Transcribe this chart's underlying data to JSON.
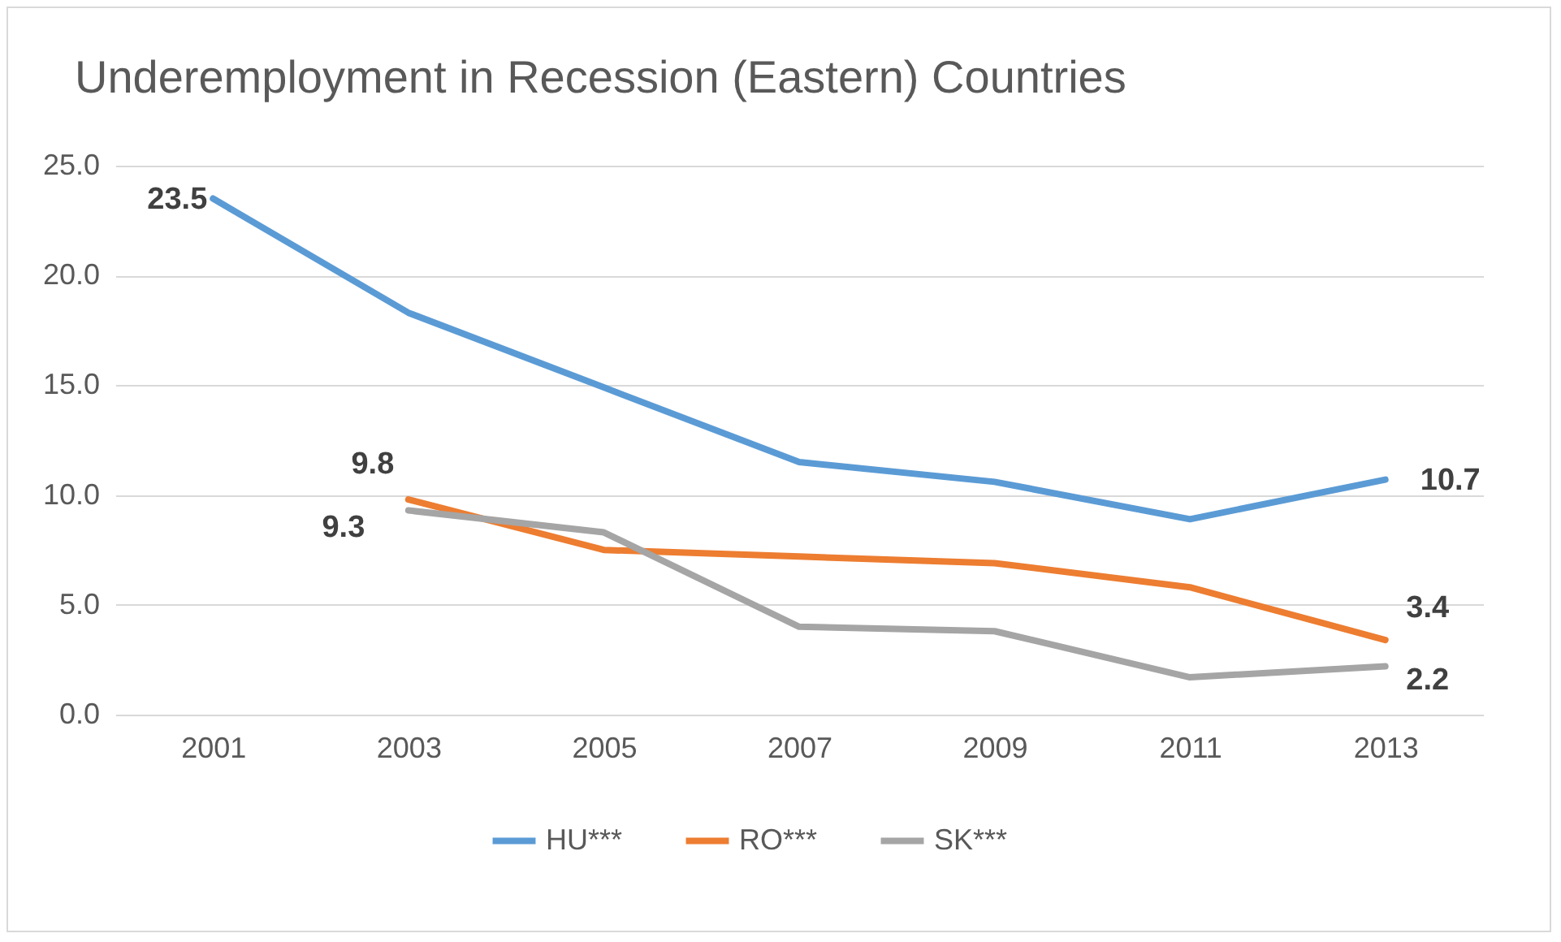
{
  "chart_data": {
    "type": "line",
    "title": "Underemployment in Recession (Eastern) Countries",
    "categories": [
      "2001",
      "2003",
      "2005",
      "2007",
      "2009",
      "2011",
      "2013"
    ],
    "series": [
      {
        "name": "HU***",
        "color": "#5b9bd5",
        "values": [
          23.5,
          18.3,
          14.9,
          11.5,
          10.6,
          8.9,
          10.7
        ],
        "value_labels": [
          "23.5",
          null,
          null,
          null,
          null,
          null,
          "10.7"
        ]
      },
      {
        "name": "RO***",
        "color": "#ed7d31",
        "values": [
          null,
          9.8,
          7.5,
          7.2,
          6.9,
          5.8,
          3.4
        ],
        "value_labels": [
          null,
          "9.8",
          null,
          null,
          null,
          null,
          "3.4"
        ]
      },
      {
        "name": "SK***",
        "color": "#a5a5a5",
        "values": [
          null,
          9.3,
          8.3,
          4.0,
          3.8,
          1.7,
          2.2
        ],
        "value_labels": [
          null,
          "9.3",
          null,
          null,
          null,
          null,
          "2.2"
        ]
      }
    ],
    "ylim": [
      0,
      25
    ],
    "yticks": [
      {
        "value": 0,
        "label": "0.0"
      },
      {
        "value": 5,
        "label": "5.0"
      },
      {
        "value": 10,
        "label": "10.0"
      },
      {
        "value": 15,
        "label": "15.0"
      },
      {
        "value": 20,
        "label": "20.0"
      },
      {
        "value": 25,
        "label": "25.0"
      }
    ],
    "grid": "y",
    "legend": "bottom",
    "line_style": "solid",
    "marker": "none"
  }
}
